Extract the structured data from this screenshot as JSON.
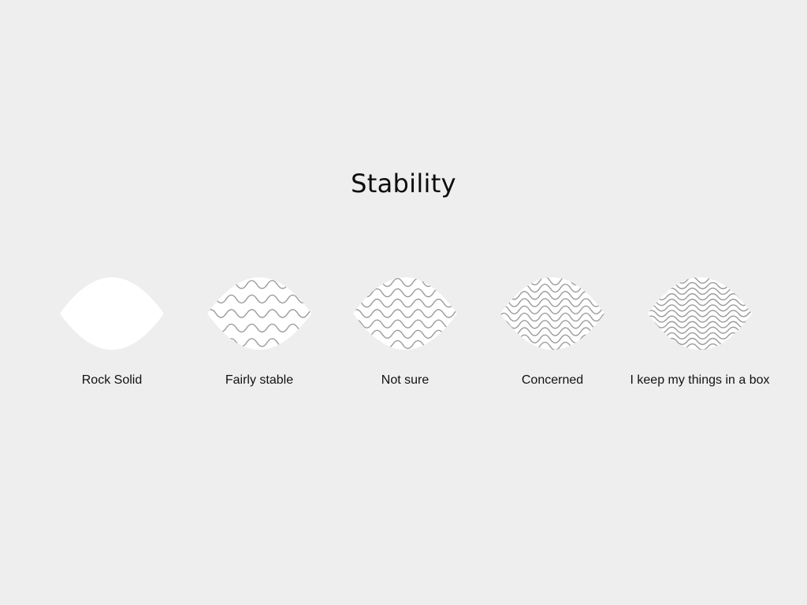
{
  "page": {
    "title": "Stability"
  },
  "options": [
    {
      "label": "Rock Solid",
      "icon": "solid-leaf-icon",
      "wave_rows": 0
    },
    {
      "label": "Fairly stable",
      "icon": "light-waves-icon",
      "wave_rows": 5
    },
    {
      "label": "Not sure",
      "icon": "medium-waves-icon",
      "wave_rows": 7
    },
    {
      "label": "Concerned",
      "icon": "dense-waves-icon",
      "wave_rows": 10
    },
    {
      "label": "I keep my things in a box",
      "icon": "very-dense-waves-icon",
      "wave_rows": 13
    }
  ],
  "colors": {
    "background": "#eeeeee",
    "shape_fill": "#ffffff",
    "wave_stroke": "#9a9a9a",
    "text": "#111111"
  }
}
